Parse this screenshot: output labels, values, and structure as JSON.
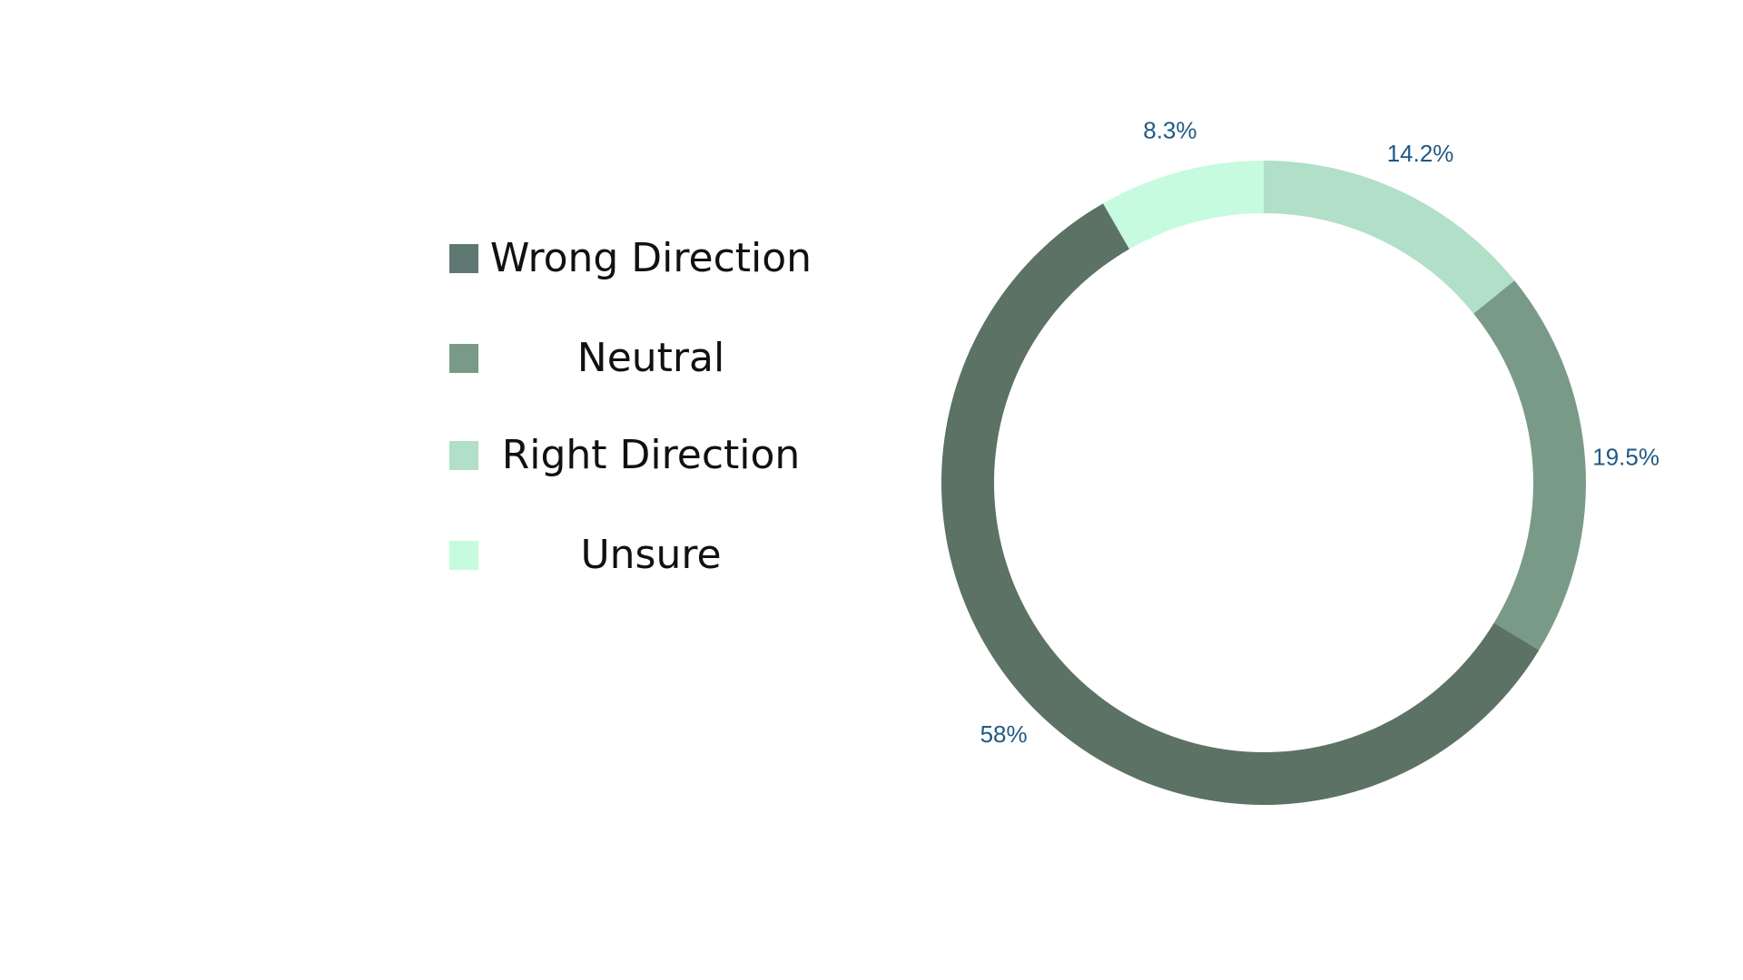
{
  "chart_data": {
    "type": "pie",
    "categories": [
      "Wrong Direction",
      "Neutral",
      "Right Direction",
      "Unsure"
    ],
    "values": [
      58,
      19.5,
      14.2,
      8.3
    ],
    "data_labels": [
      "58%",
      "19.5%",
      "14.2%",
      "8.3%"
    ],
    "colors": [
      "#5b7265",
      "#7a9a88",
      "#b1dfc8",
      "#c6fbe0"
    ],
    "legend_colors": [
      "#5f7771",
      "#7a9a88",
      "#b1dfc8",
      "#c6fbe0"
    ],
    "donut": true,
    "start_angle_deg": 0,
    "direction": "clockwise",
    "slice_order": [
      "Right Direction",
      "Neutral",
      "Wrong Direction",
      "Unsure"
    ],
    "legend_position": "left",
    "title": "",
    "xlabel": "",
    "ylabel": ""
  }
}
